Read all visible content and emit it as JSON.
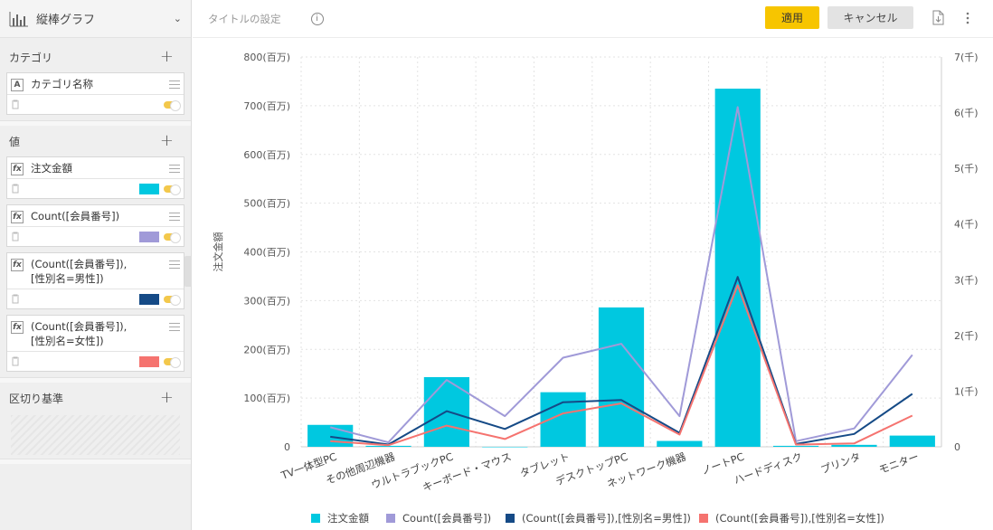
{
  "left_panel": {
    "chart_type_label": "縦棒グラフ",
    "category_section": {
      "title": "カテゴリ",
      "fields": [
        {
          "badge": "A",
          "name": "カテゴリ名称"
        }
      ]
    },
    "value_section": {
      "title": "値",
      "fields": [
        {
          "badge": "fx",
          "name": "注文金額",
          "color": "#00c8e0"
        },
        {
          "badge": "fx",
          "name": "Count([会員番号])",
          "color": "#a09ad8"
        },
        {
          "badge": "fx",
          "name": "(Count([会員番号]),\n[性別名=男性])",
          "color": "#154a86"
        },
        {
          "badge": "fx",
          "name": "(Count([会員番号]),\n[性別名=女性])",
          "color": "#f5736f"
        }
      ]
    },
    "breakdown_section": {
      "title": "区切り基準"
    }
  },
  "toolbar": {
    "title_setting": "タイトルの設定",
    "apply_label": "適用",
    "cancel_label": "キャンセル"
  },
  "chart_data": {
    "type": "bar",
    "ylabel": "注文金額",
    "y_ticks": [
      "0",
      "100(百万)",
      "200(百万)",
      "300(百万)",
      "400(百万)",
      "500(百万)",
      "600(百万)",
      "700(百万)",
      "800(百万)"
    ],
    "ylim": [
      0,
      800
    ],
    "y2_ticks": [
      "0",
      "1(千)",
      "2(千)",
      "3(千)",
      "4(千)",
      "5(千)",
      "6(千)",
      "7(千)"
    ],
    "y2lim": [
      0,
      7000
    ],
    "categories": [
      "TV一体型PC",
      "その他周辺機器",
      "ウルトラブックPC",
      "キーボード・マウス",
      "タブレット",
      "デスクトップPC",
      "ネットワーク機器",
      "ノートPC",
      "ハードディスク",
      "プリンタ",
      "モニター"
    ],
    "series": [
      {
        "name": "注文金額",
        "kind": "bar",
        "axis": "left",
        "color": "#00c8e0",
        "values": [
          45,
          2,
          143,
          0,
          112,
          286,
          12,
          735,
          2,
          4,
          23
        ]
      },
      {
        "name": "Count([会員番号])",
        "kind": "line",
        "axis": "right",
        "color": "#a09ad8",
        "values": [
          350,
          80,
          1200,
          550,
          1600,
          1850,
          550,
          6100,
          100,
          330,
          1650
        ]
      },
      {
        "name": "(Count([会員番号]),[性別名=男性])",
        "kind": "line",
        "axis": "right",
        "color": "#154a86",
        "values": [
          180,
          40,
          640,
          320,
          800,
          840,
          250,
          3050,
          50,
          230,
          950
        ]
      },
      {
        "name": "(Count([会員番号]),[性別名=女性])",
        "kind": "line",
        "axis": "right",
        "color": "#f5736f",
        "values": [
          100,
          30,
          380,
          140,
          600,
          780,
          220,
          2900,
          40,
          60,
          560
        ]
      }
    ],
    "grid": true,
    "legend_position": "bottom"
  }
}
